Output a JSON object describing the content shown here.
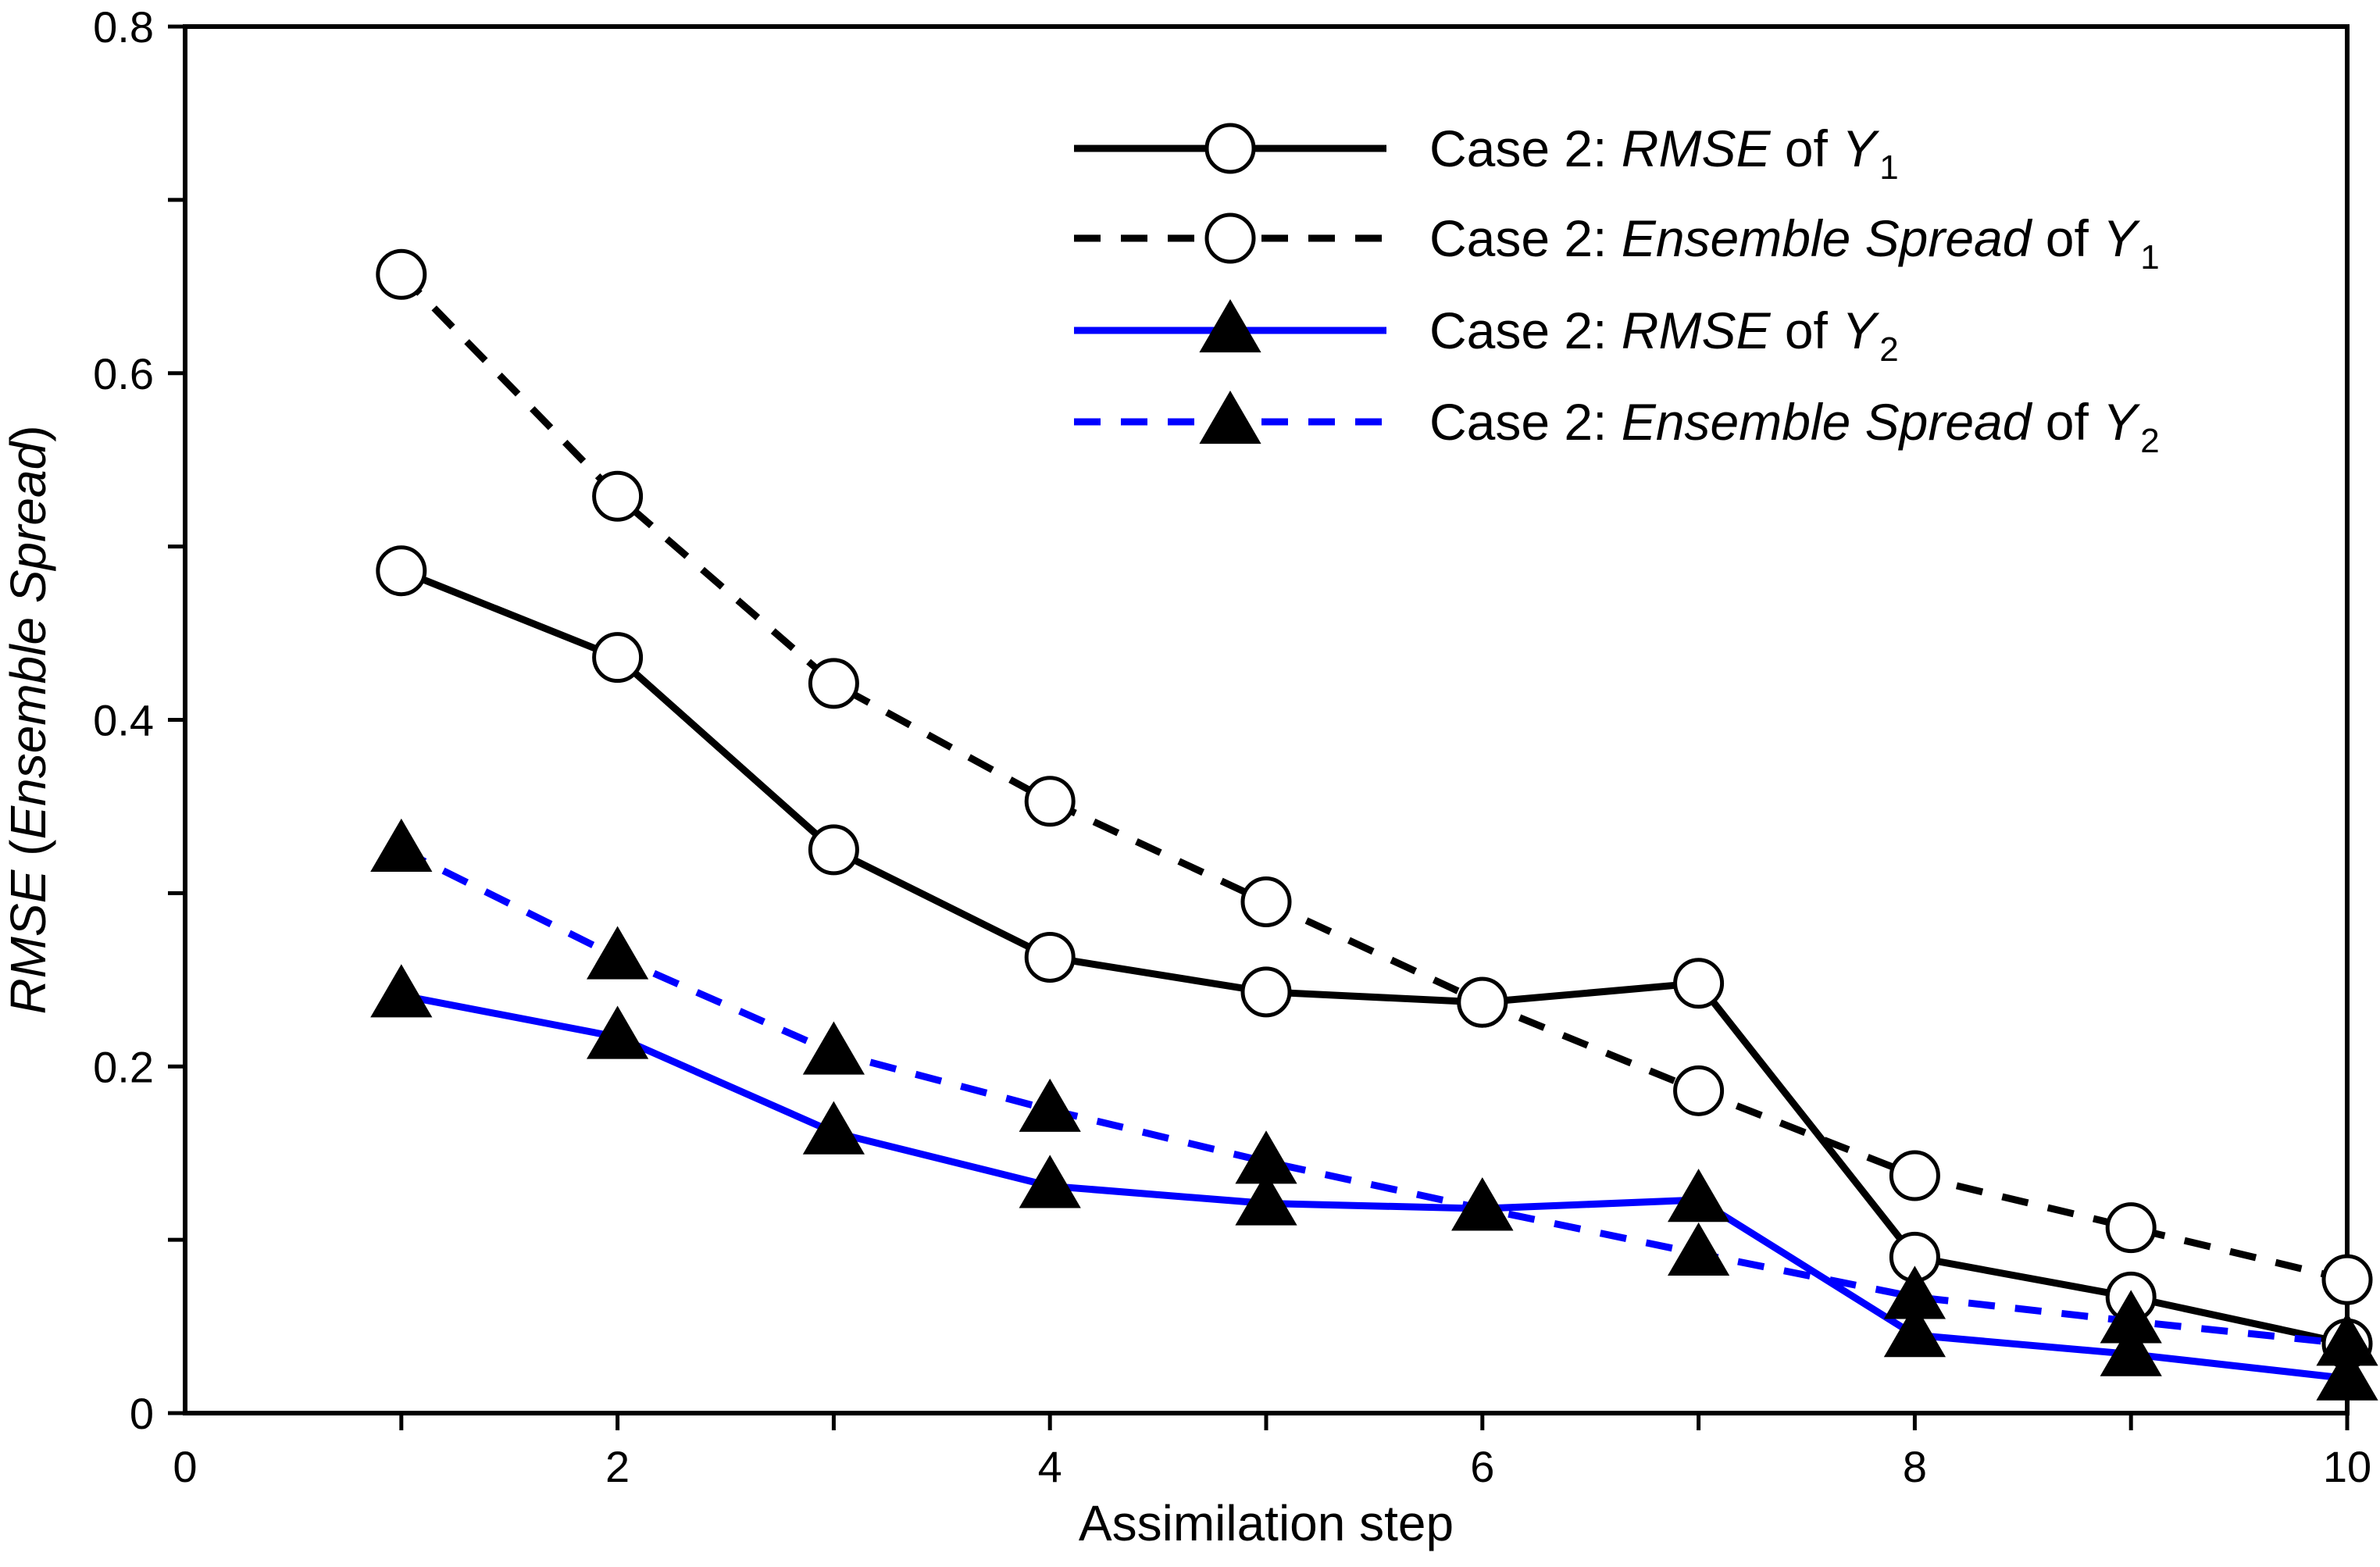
{
  "chart_data": {
    "type": "line",
    "xlabel": "Assimilation step",
    "ylabel_parts": [
      {
        "text": "RMSE",
        "italic": true
      },
      {
        "text": " (",
        "italic": false
      },
      {
        "text": "Ensemble Spread",
        "italic": true
      },
      {
        "text": ")",
        "italic": false
      }
    ],
    "xlim": [
      0,
      10
    ],
    "ylim": [
      0,
      0.8
    ],
    "x_ticks": [
      0,
      2,
      4,
      6,
      8,
      10
    ],
    "x_minor_ticks": [
      1,
      2,
      3,
      4,
      5,
      6,
      7,
      8,
      9,
      10
    ],
    "y_ticks": [
      0,
      0.2,
      0.4,
      0.6,
      0.8
    ],
    "y_tick_labels": [
      "0",
      "0.2",
      "0.4",
      "0.6",
      "0.8"
    ],
    "y_minor_ticks": [
      0.1,
      0.3,
      0.5,
      0.7
    ],
    "grid": false,
    "legend_position": "top-right",
    "x": [
      1,
      2,
      3,
      4,
      5,
      6,
      7,
      8,
      9,
      10
    ],
    "series": [
      {
        "key": "rmse-y1",
        "legend": [
          {
            "text": "Case 2: ",
            "italic": false
          },
          {
            "text": "RMSE",
            "italic": true
          },
          {
            "text": " of ",
            "italic": false
          },
          {
            "text": "Y",
            "italic": true
          },
          {
            "text": "1",
            "italic": false,
            "sub": true
          }
        ],
        "values": [
          0.486,
          0.436,
          0.325,
          0.263,
          0.243,
          0.237,
          0.248,
          0.09,
          0.067,
          0.04
        ],
        "color": "#000000",
        "dash": "solid",
        "marker": "open-circle"
      },
      {
        "key": "spread-y1",
        "legend": [
          {
            "text": "Case 2: ",
            "italic": false
          },
          {
            "text": "Ensemble Spread",
            "italic": true
          },
          {
            "text": " of ",
            "italic": false
          },
          {
            "text": "Y",
            "italic": true
          },
          {
            "text": "1",
            "italic": false,
            "sub": true
          }
        ],
        "values": [
          0.657,
          0.529,
          0.421,
          0.353,
          0.295,
          0.237,
          0.186,
          0.137,
          0.107,
          0.077
        ],
        "color": "#000000",
        "dash": "dashed",
        "marker": "open-circle"
      },
      {
        "key": "rmse-y2",
        "legend": [
          {
            "text": "Case 2: ",
            "italic": false
          },
          {
            "text": "RMSE",
            "italic": true
          },
          {
            "text": " of ",
            "italic": false
          },
          {
            "text": "Y",
            "italic": true
          },
          {
            "text": "2",
            "italic": false,
            "sub": true
          }
        ],
        "values": [
          0.241,
          0.217,
          0.162,
          0.131,
          0.121,
          0.118,
          0.123,
          0.045,
          0.034,
          0.02
        ],
        "color": "#0000ff",
        "dash": "solid",
        "marker": "filled-triangle"
      },
      {
        "key": "spread-y2",
        "legend": [
          {
            "text": "Case 2: ",
            "italic": false
          },
          {
            "text": "Ensemble Spread",
            "italic": true
          },
          {
            "text": " of ",
            "italic": false
          },
          {
            "text": "Y",
            "italic": true
          },
          {
            "text": "2",
            "italic": false,
            "sub": true
          }
        ],
        "values": [
          0.325,
          0.263,
          0.208,
          0.175,
          0.145,
          0.118,
          0.092,
          0.067,
          0.053,
          0.04
        ],
        "color": "#0000ff",
        "dash": "dashed",
        "marker": "filled-triangle"
      }
    ]
  }
}
